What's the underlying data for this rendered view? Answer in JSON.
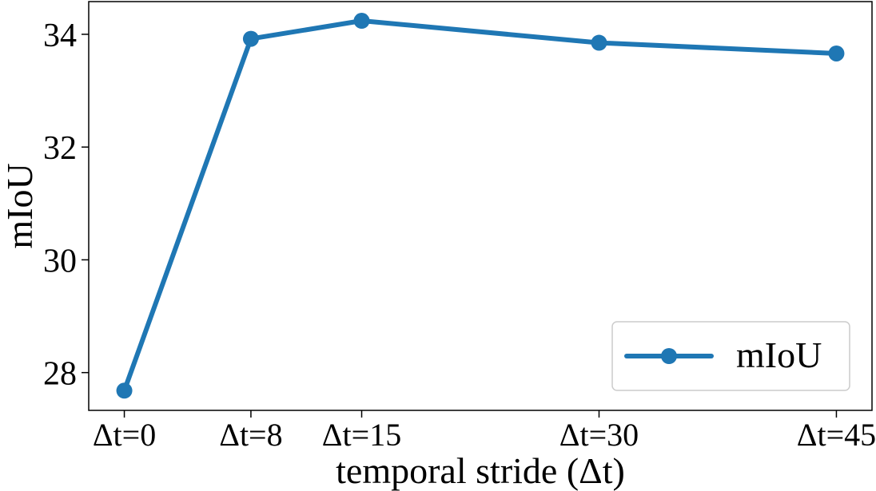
{
  "chart_data": {
    "type": "line",
    "x": [
      0,
      8,
      15,
      30,
      45
    ],
    "x_tick_labels": [
      "Δt=0",
      "Δt=8",
      "Δt=15",
      "Δt=30",
      "Δt=45"
    ],
    "series": [
      {
        "name": "mIoU",
        "values": [
          27.68,
          33.92,
          34.24,
          33.85,
          33.66
        ],
        "color": "#1f77b4"
      }
    ],
    "xlabel": "temporal stride (Δt)",
    "ylabel": "mIoU",
    "xlim": [
      -2.25,
      47.25
    ],
    "ylim": [
      27.33,
      34.58
    ],
    "y_ticks": [
      28,
      30,
      32,
      34
    ],
    "grid": false,
    "legend_position": "lower-right"
  }
}
